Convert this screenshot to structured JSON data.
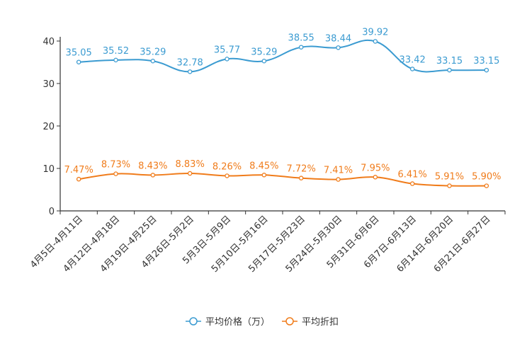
{
  "chart_data": {
    "type": "line",
    "categories": [
      "4月5日-4月11日",
      "4月12日-4月18日",
      "4月19日-4月25日",
      "4月26日-5月2日",
      "5月3日-5月9日",
      "5月10日-5月16日",
      "5月17日-5月23日",
      "5月24日-5月30日",
      "5月31日-6月6日",
      "6月7日-6月13日",
      "6月14日-6月20日",
      "6月21日-6月27日"
    ],
    "ylim": [
      0,
      40
    ],
    "yticks": [
      0,
      10,
      20,
      30,
      40
    ],
    "series": [
      {
        "name": "平均价格（万）",
        "color": "#3b9bd1",
        "values": [
          35.05,
          35.52,
          35.29,
          32.78,
          35.77,
          35.29,
          38.55,
          38.44,
          39.92,
          33.42,
          33.15,
          33.15
        ],
        "labels": [
          "35.05",
          "35.52",
          "35.29",
          "32.78",
          "35.77",
          "35.29",
          "38.55",
          "38.44",
          "39.92",
          "33.42",
          "33.15",
          "33.15"
        ]
      },
      {
        "name": "平均折扣",
        "color": "#f07c1b",
        "values": [
          7.47,
          8.73,
          8.43,
          8.83,
          8.26,
          8.45,
          7.72,
          7.41,
          7.95,
          6.41,
          5.91,
          5.9
        ],
        "labels": [
          "7.47%",
          "8.73%",
          "8.43%",
          "8.83%",
          "8.26%",
          "8.45%",
          "7.72%",
          "7.41%",
          "7.95%",
          "6.41%",
          "5.91%",
          "5.90%"
        ]
      }
    ]
  }
}
